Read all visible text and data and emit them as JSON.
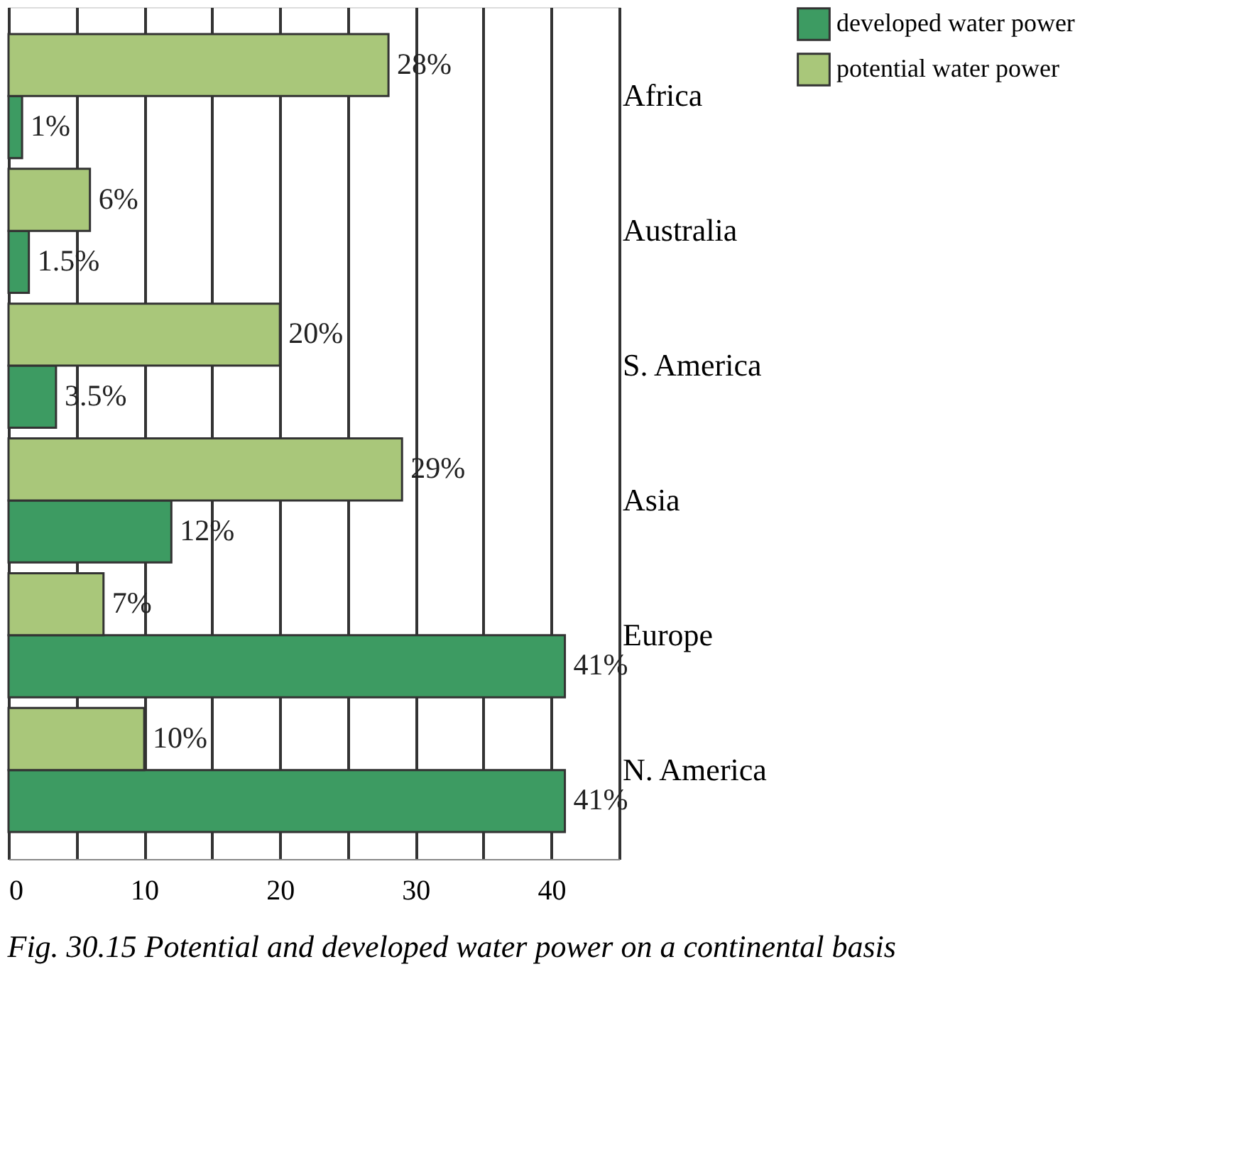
{
  "chart_data": {
    "type": "bar",
    "orientation": "horizontal",
    "title": "Fig. 30.15 Potential and developed water power on a continental basis",
    "categories": [
      "Africa",
      "Australia",
      "S. America",
      "Asia",
      "Europe",
      "N. America"
    ],
    "series": [
      {
        "name": "developed water power",
        "color": "#3d9b62",
        "values": [
          1,
          1.5,
          3.5,
          12,
          41,
          41
        ],
        "value_labels": [
          "1%",
          "1.5%",
          "3.5%",
          "12%",
          "41%",
          "41%"
        ]
      },
      {
        "name": "potential water power",
        "color": "#a9c77a",
        "values": [
          28,
          6,
          20,
          29,
          7,
          10
        ],
        "value_labels": [
          "28%",
          "6%",
          "20%",
          "29%",
          "7%",
          "10%"
        ]
      }
    ],
    "xlim": [
      0,
      45
    ],
    "xticks": [
      0,
      {
        "value": 5,
        "label": null
      },
      10,
      {
        "value": 15,
        "label": null
      },
      20,
      {
        "value": 25,
        "label": null
      },
      30,
      {
        "value": 35,
        "label": null
      },
      40,
      {
        "value": 45,
        "label": null
      }
    ],
    "grid": "x",
    "legend": "right"
  }
}
